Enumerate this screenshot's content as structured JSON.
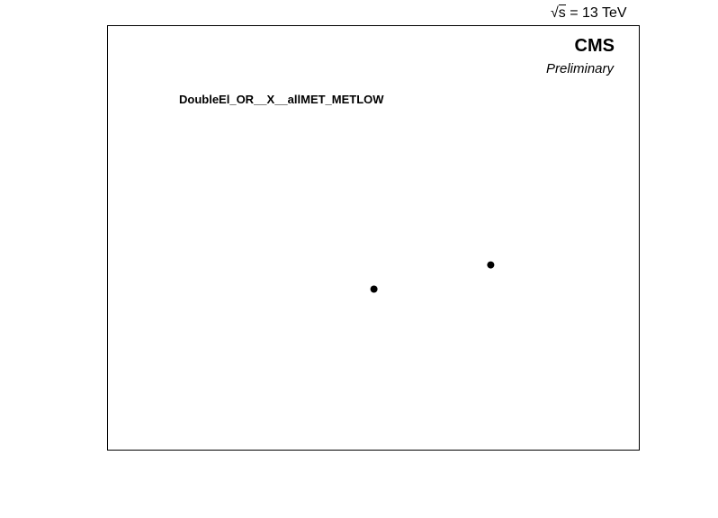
{
  "header": {
    "energy_prefix": "s",
    "energy_value": " = 13 TeV"
  },
  "labels": {
    "experiment": "CMS",
    "status": "Preliminary",
    "selection": "DoubleEl_OR__X__allMET_METLOW"
  },
  "colors": {
    "marker": "#000000",
    "frame": "#000000",
    "background": "#ffffff"
  },
  "chart_data": {
    "type": "scatter",
    "title": "",
    "xlabel": "",
    "ylabel": "",
    "xlim": [
      0,
      100
    ],
    "ylim": [
      0,
      100
    ],
    "grid": false,
    "series": [
      {
        "x": [
          50.1,
          72.1
        ],
        "y": [
          37.9,
          43.6
        ]
      }
    ]
  }
}
